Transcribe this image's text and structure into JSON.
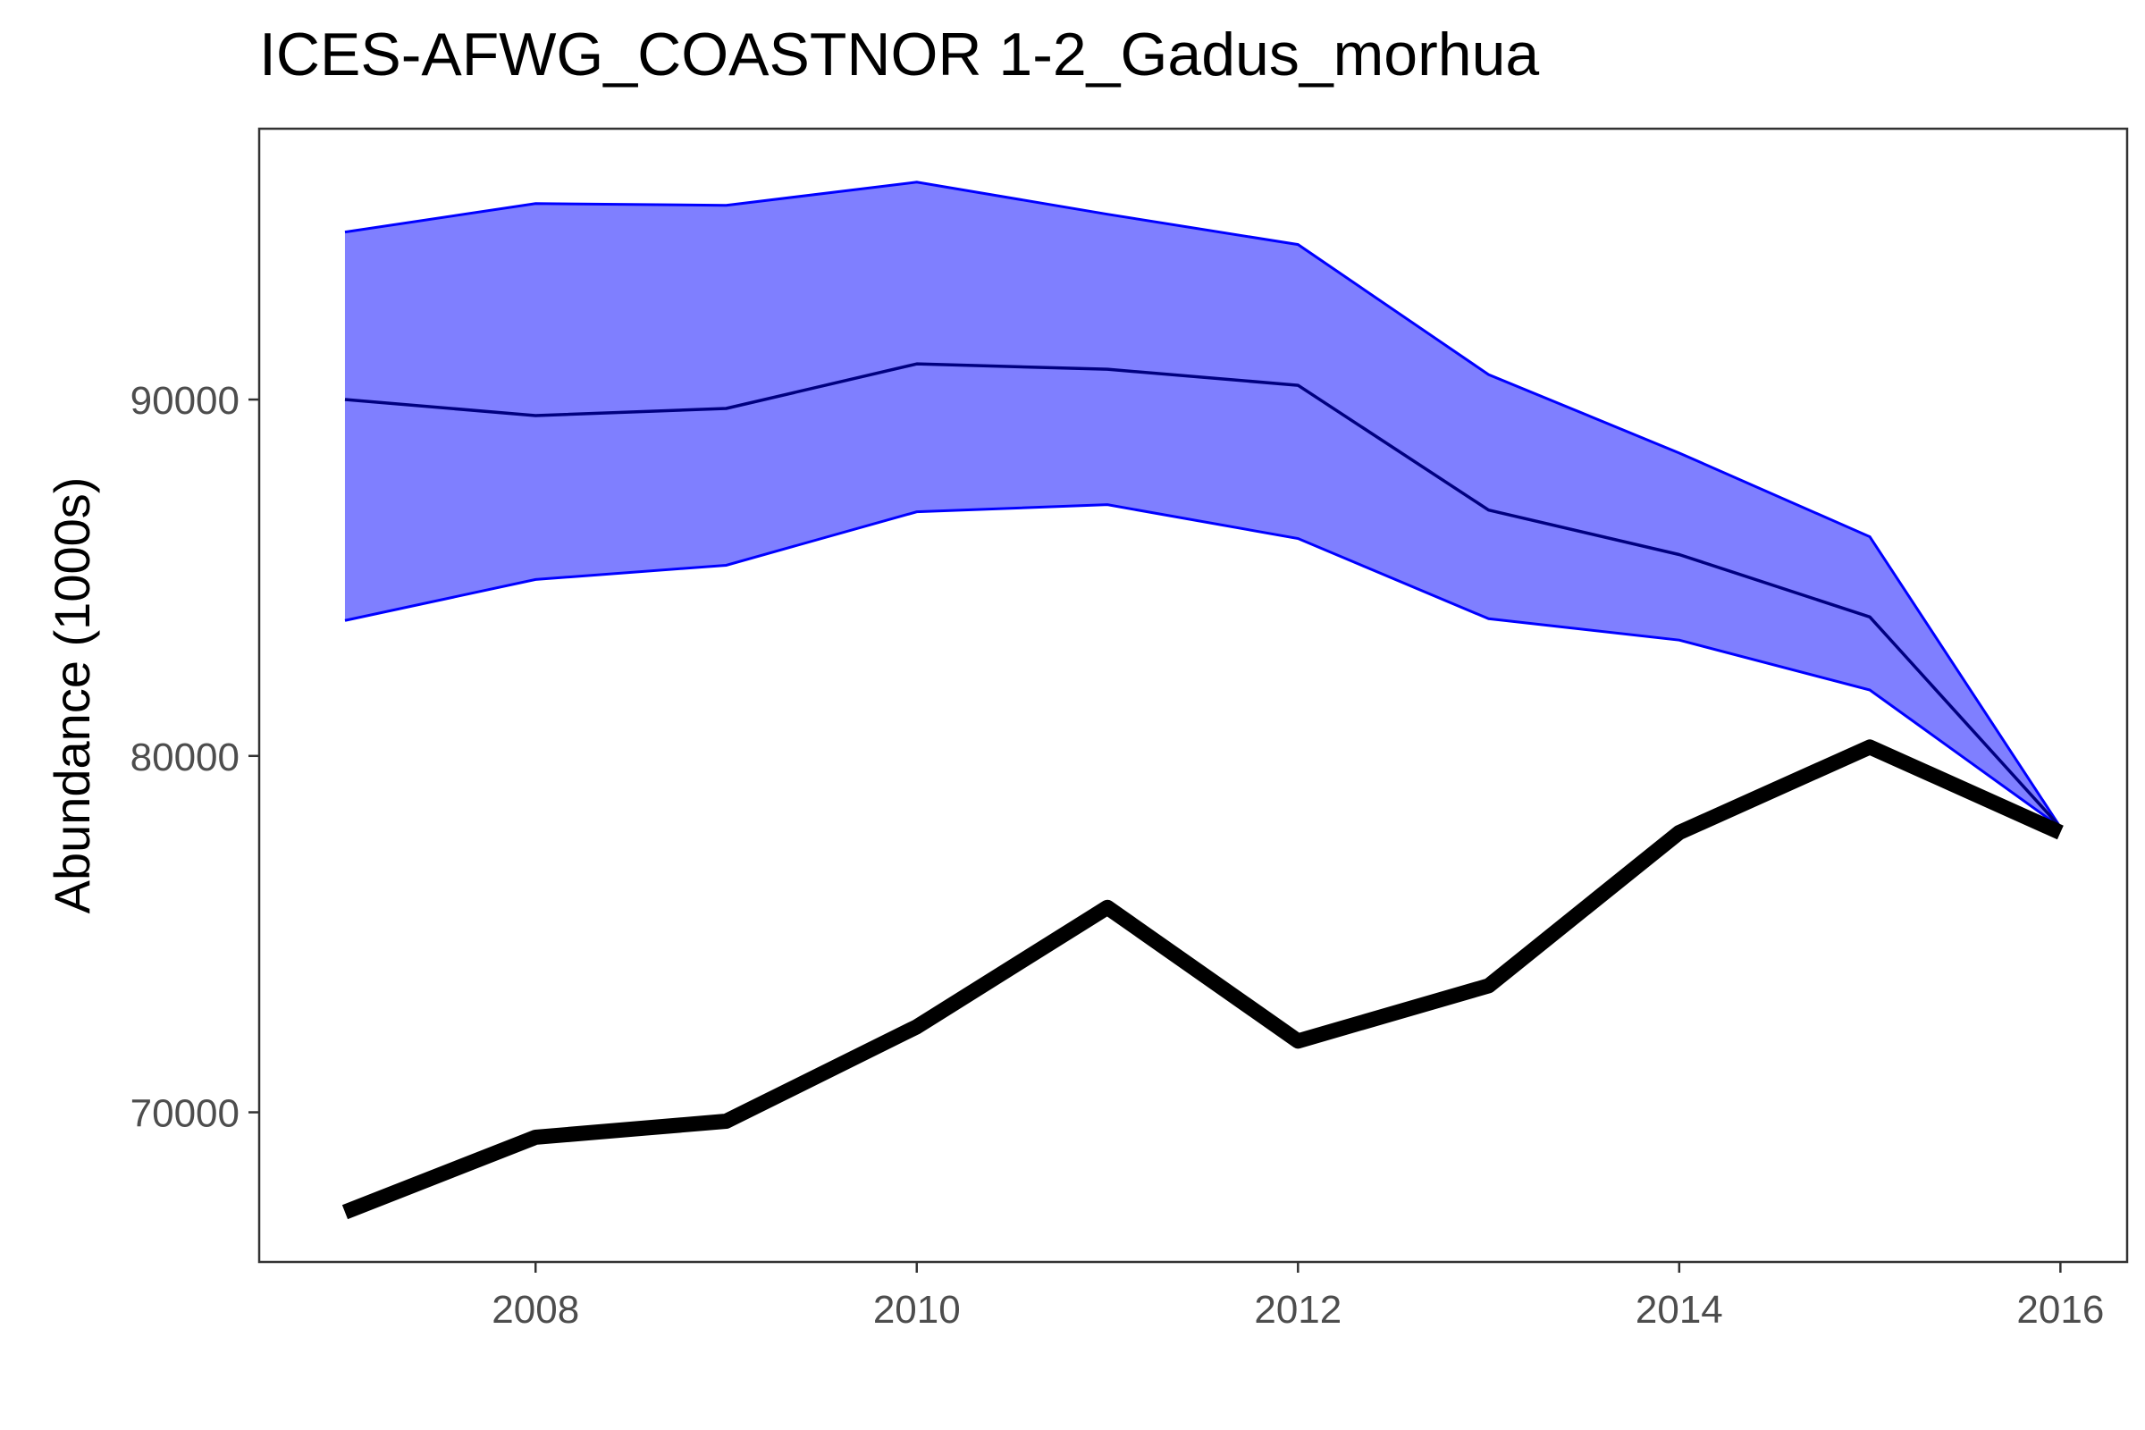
{
  "chart_data": {
    "type": "line",
    "title": "ICES-AFWG_COASTNOR 1-2_Gadus_morhua",
    "xlabel": "",
    "ylabel": "Abundance (1000s)",
    "x": [
      2007,
      2008,
      2009,
      2010,
      2011,
      2012,
      2013,
      2014,
      2015,
      2016
    ],
    "x_ticks": [
      2008,
      2010,
      2012,
      2014,
      2016
    ],
    "y_ticks": [
      70000,
      80000,
      90000
    ],
    "xlim": [
      2006.55,
      2016.35
    ],
    "ylim": [
      65800,
      97600
    ],
    "grid": false,
    "band": {
      "upper": [
        94700,
        95500,
        95450,
        96100,
        95200,
        94350,
        90700,
        88500,
        86150,
        78000
      ],
      "lower": [
        83800,
        84950,
        85350,
        86850,
        87050,
        86100,
        83850,
        83250,
        81850,
        78000
      ],
      "fill": "#7f7fff",
      "edge_color": "#0000ff"
    },
    "series": [
      {
        "values": [
          90000,
          89550,
          89750,
          91000,
          90850,
          90400,
          86900,
          85650,
          83900,
          78000
        ],
        "color": "#000080",
        "weight": "thin"
      },
      {
        "values": [
          67200,
          69300,
          69750,
          72400,
          75750,
          72000,
          73550,
          77850,
          80250,
          77850
        ],
        "color": "#000000",
        "weight": "thick"
      }
    ]
  }
}
